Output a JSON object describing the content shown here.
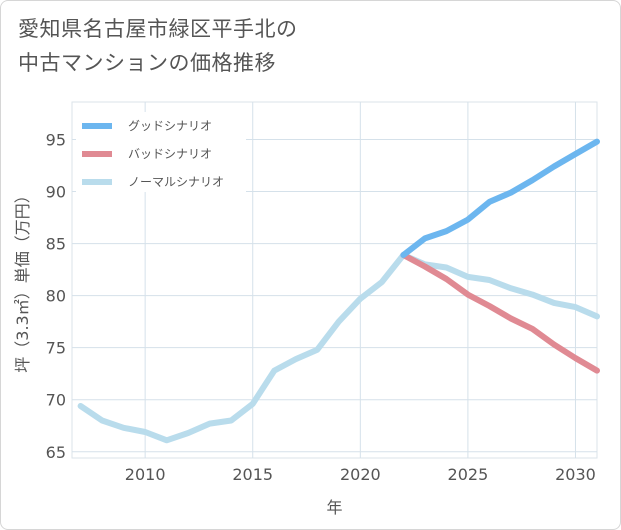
{
  "title_line1": "愛知県名古屋市緑区平手北の",
  "title_line2": "中古マンションの価格推移",
  "chart_data": {
    "type": "line",
    "xlabel": "年",
    "ylabel": "坪（3.3㎡）単価（万円）",
    "xlim": [
      2006.6,
      2031
    ],
    "ylim": [
      64.4,
      98.6
    ],
    "xticks": [
      2010,
      2015,
      2020,
      2025,
      2030
    ],
    "yticks": [
      65,
      70,
      75,
      80,
      85,
      90,
      95
    ],
    "grid": true,
    "legend_position": "top-left",
    "series": [
      {
        "name": "グッドシナリオ",
        "color": "#6cb6ef",
        "x": [
          2022,
          2023,
          2024,
          2025,
          2026,
          2027,
          2028,
          2029,
          2030,
          2031
        ],
        "y": [
          83.9,
          85.5,
          86.2,
          87.3,
          89.0,
          89.9,
          91.1,
          92.4,
          93.6,
          94.8
        ]
      },
      {
        "name": "バッドシナリオ",
        "color": "#e08a93",
        "x": [
          2022,
          2023,
          2024,
          2025,
          2026,
          2027,
          2028,
          2029,
          2030,
          2031
        ],
        "y": [
          83.9,
          82.8,
          81.6,
          80.1,
          79.0,
          77.8,
          76.8,
          75.3,
          74.0,
          72.8
        ]
      },
      {
        "name": "ノーマルシナリオ",
        "color": "#b9dcec",
        "x": [
          2007,
          2008,
          2009,
          2010,
          2011,
          2012,
          2013,
          2014,
          2015,
          2016,
          2017,
          2018,
          2019,
          2020,
          2021,
          2022,
          2023,
          2024,
          2025,
          2026,
          2027,
          2028,
          2029,
          2030,
          2031
        ],
        "y": [
          69.4,
          68.0,
          67.3,
          66.9,
          66.1,
          66.8,
          67.7,
          68.0,
          69.6,
          72.8,
          73.9,
          74.8,
          77.5,
          79.7,
          81.3,
          83.9,
          83.0,
          82.7,
          81.8,
          81.5,
          80.7,
          80.1,
          79.3,
          78.9,
          78.0
        ]
      }
    ]
  }
}
